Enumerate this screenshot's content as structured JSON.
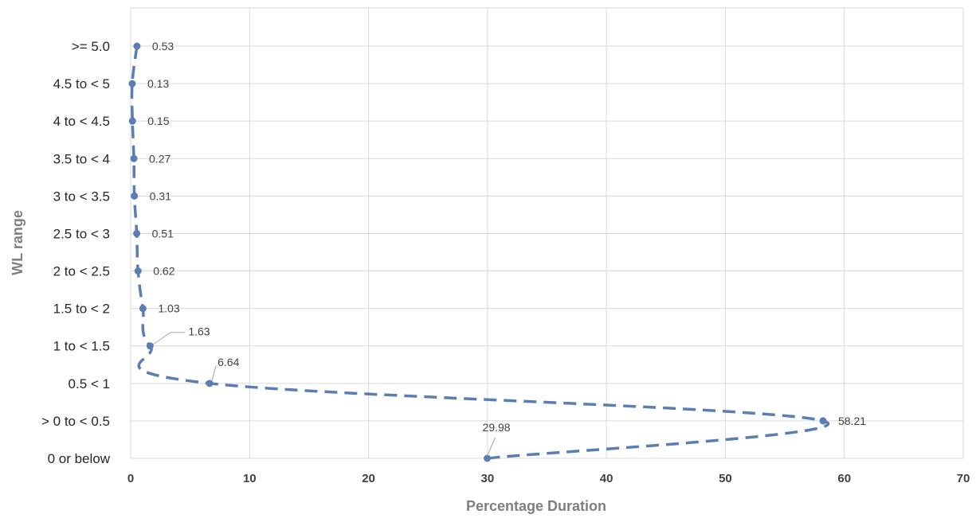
{
  "chart_data": {
    "type": "line",
    "orientation": "horizontal",
    "xlabel": "Percentage Duration",
    "ylabel": "WL range",
    "xlim": [
      0,
      70
    ],
    "xticks": [
      0,
      10,
      20,
      30,
      40,
      50,
      60,
      70
    ],
    "grid": true,
    "legend": "none",
    "line_style": "dashed, smoothed, with markers",
    "series_color": "#5B7DB1",
    "categories": [
      "0 or below",
      "> 0 to < 0.5",
      "0.5 < 1",
      "1 to < 1.5",
      "1.5 to < 2",
      "2 to < 2.5",
      "2.5 to < 3",
      "3 to < 3.5",
      "3.5 to < 4",
      "4 to < 4.5",
      "4.5 to < 5",
      ">= 5.0"
    ],
    "values": [
      29.98,
      58.21,
      6.64,
      1.63,
      1.03,
      0.62,
      0.51,
      0.31,
      0.27,
      0.15,
      0.13,
      0.53
    ],
    "data_labels": [
      "29.98",
      "58.21",
      "6.64",
      "1.63",
      "1.03",
      "0.62",
      "0.51",
      "0.31",
      "0.27",
      "0.15",
      "0.13",
      "0.53"
    ]
  }
}
